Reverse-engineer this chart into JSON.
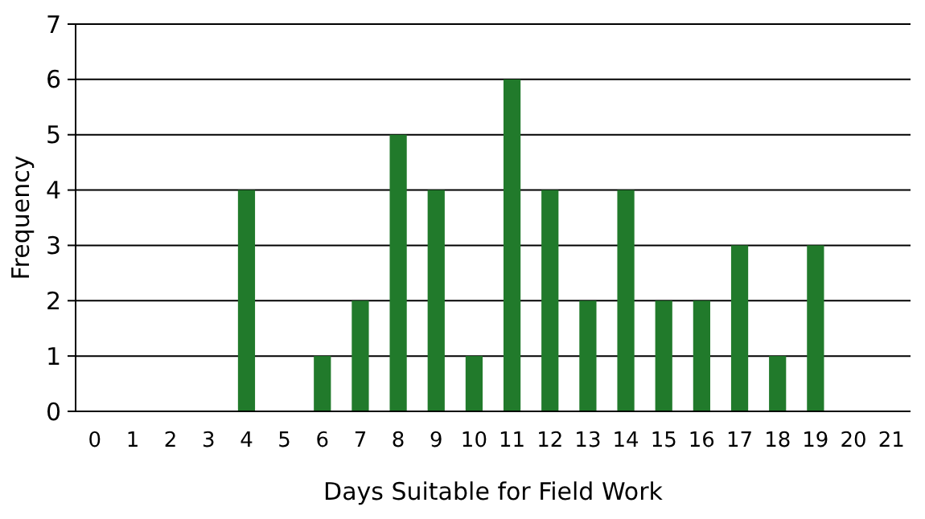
{
  "chart_data": {
    "type": "bar",
    "xlabel": "Days Suitable for Field Work",
    "ylabel": "Frequency",
    "categories": [
      "0",
      "1",
      "2",
      "3",
      "4",
      "5",
      "6",
      "7",
      "8",
      "9",
      "10",
      "11",
      "12",
      "13",
      "14",
      "15",
      "16",
      "17",
      "18",
      "19",
      "20",
      "21"
    ],
    "values": [
      0,
      0,
      0,
      0,
      4,
      0,
      1,
      2,
      5,
      4,
      1,
      6,
      4,
      2,
      4,
      2,
      2,
      3,
      1,
      3,
      0,
      0
    ],
    "color": "#217a2b",
    "ylim": [
      0,
      7
    ],
    "yticks": [
      0,
      1,
      2,
      3,
      4,
      5,
      6,
      7
    ],
    "grid": "y"
  }
}
